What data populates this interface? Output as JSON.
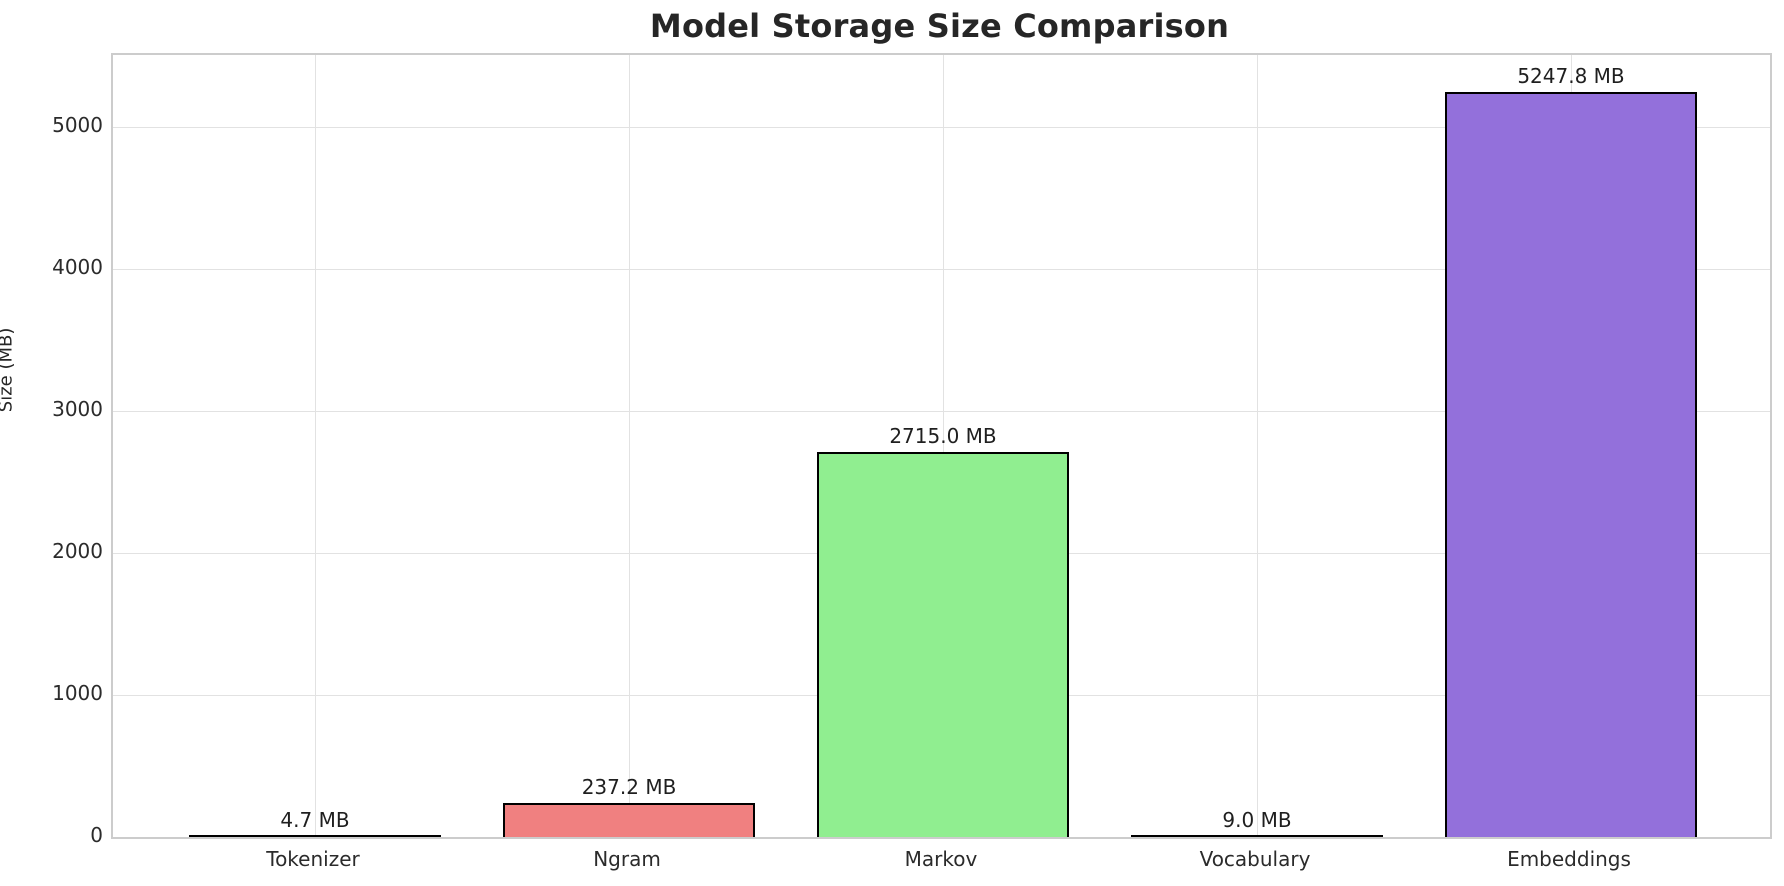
{
  "chart_data": {
    "type": "bar",
    "title": "Model Storage Size Comparison",
    "xlabel": "",
    "ylabel": "Size (MB)",
    "categories": [
      "Tokenizer",
      "Ngram",
      "Markov",
      "Vocabulary",
      "Embeddings"
    ],
    "values": [
      4.7,
      237.2,
      2715.0,
      9.0,
      5247.8
    ],
    "value_labels": [
      "4.7 MB",
      "237.2 MB",
      "2715.0 MB",
      "9.0 MB",
      "5247.8 MB"
    ],
    "bar_colors": [
      "#87ceeb",
      "#f08080",
      "#90ee90",
      "#ffd700",
      "#9370db"
    ],
    "bar_edge_color": "#000000",
    "yticks": [
      0,
      1000,
      2000,
      3000,
      4000,
      5000
    ],
    "ytick_labels": [
      "0",
      "1000",
      "2000",
      "3000",
      "4000",
      "5000"
    ],
    "ylim": [
      0,
      5510
    ],
    "grid": true,
    "grid_color": "#e2e2e2",
    "spine_color": "#cccccc",
    "background_color": "#ffffff",
    "title_color": "#262626",
    "legend": null
  }
}
